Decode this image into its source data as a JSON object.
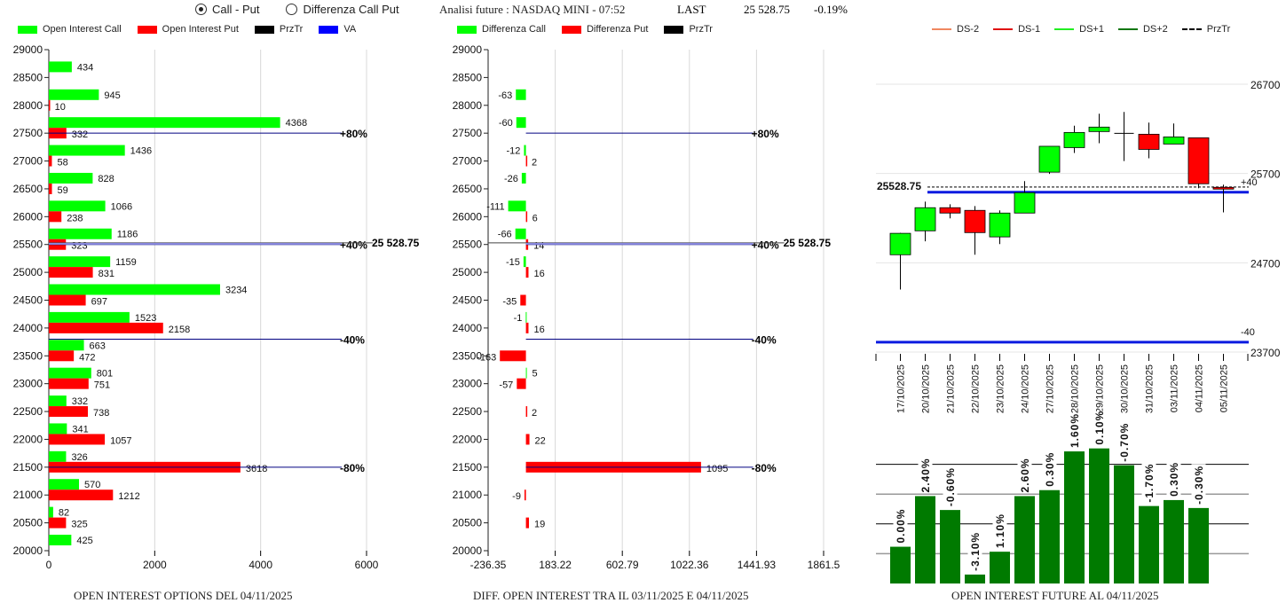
{
  "header": {
    "radio_options": [
      {
        "label": "Call - Put",
        "selected": true
      },
      {
        "label": "Differenza Call Put",
        "selected": false
      }
    ],
    "title": "Analisi future : NASDAQ MINI - 07:52",
    "last_label": "LAST",
    "last_price": "25 528.75",
    "change": "-0.19%"
  },
  "colors": {
    "call": "#00ff00",
    "put": "#ff0000",
    "przTr": "#000000",
    "va": "#0000ff",
    "ds_minus2": "#f08860",
    "ds_minus1": "#e01010",
    "ds_plus1": "#22ee22",
    "ds_plus2": "#117711",
    "oi_future": "#007a00"
  },
  "chart_data": [
    {
      "type": "bar",
      "orientation": "horizontal",
      "title": "OPEN INTEREST OPTIONS DEL 04/11/2025",
      "legend": [
        "Open Interest Call",
        "Open Interest Put",
        "PrzTr",
        "VA"
      ],
      "legend_position": "top",
      "categories": [
        28500,
        28000,
        27500,
        27000,
        26500,
        26000,
        25500,
        25000,
        24500,
        24000,
        23500,
        23000,
        22500,
        22000,
        21500,
        21000,
        20500,
        20000
      ],
      "series": [
        {
          "name": "Open Interest Call",
          "values": [
            434,
            945,
            4368,
            1436,
            828,
            1066,
            1186,
            1159,
            3234,
            1523,
            663,
            801,
            332,
            341,
            326,
            570,
            82,
            425
          ]
        },
        {
          "name": "Open Interest Put",
          "values": [
            null,
            10,
            332,
            58,
            59,
            238,
            323,
            831,
            697,
            2158,
            472,
            751,
            738,
            1057,
            3618,
            1212,
            325,
            null
          ]
        }
      ],
      "y_ticks": [
        "29000",
        "28500",
        "28000",
        "27500",
        "27000",
        "26500",
        "26000",
        "25500",
        "25000",
        "24500",
        "24000",
        "23500",
        "23000",
        "22500",
        "22000",
        "21500",
        "21000",
        "20500",
        "20000"
      ],
      "ylim": [
        20000,
        29000
      ],
      "x_ticks": [
        "0",
        "2000",
        "4000",
        "6000"
      ],
      "xlim": [
        0,
        7000
      ],
      "levels": [
        {
          "label": "+80%",
          "price": 27500
        },
        {
          "label": "+40%",
          "price": 25500
        },
        {
          "label": "-40%",
          "price": 23800
        },
        {
          "label": "-80%",
          "price": 21500
        }
      ],
      "przTr": {
        "price": 25528.75,
        "label": "25 528.75"
      },
      "grid": true
    },
    {
      "type": "bar",
      "orientation": "horizontal",
      "title": "DIFF. OPEN INTEREST TRA IL 03/11/2025 E 04/11/2025",
      "legend": [
        "Differenza Call",
        "Differenza Put",
        "PrzTr"
      ],
      "legend_position": "top",
      "categories": [
        28000,
        27500,
        27000,
        26500,
        26000,
        25500,
        25000,
        24500,
        24000,
        23500,
        23000,
        22500,
        22000,
        21500,
        21000,
        20500
      ],
      "series": [
        {
          "name": "Differenza Call",
          "values": [
            -63,
            -60,
            -12,
            -26,
            -111,
            -66,
            -15,
            null,
            -1,
            null,
            5,
            null,
            null,
            null,
            null,
            null
          ]
        },
        {
          "name": "Differenza Put",
          "values": [
            null,
            null,
            2,
            null,
            6,
            14,
            16,
            -35,
            16,
            -163,
            -57,
            2,
            22,
            1095,
            -9,
            19
          ]
        }
      ],
      "y_ticks": [
        "29000",
        "28500",
        "28000",
        "27500",
        "27000",
        "26500",
        "26000",
        "25500",
        "25000",
        "24500",
        "24000",
        "23500",
        "23000",
        "22500",
        "22000",
        "21500",
        "21000",
        "20500",
        "20000"
      ],
      "ylim": [
        20000,
        29000
      ],
      "x_ticks": [
        "-236.35",
        "183.22",
        "602.79",
        "1022.36",
        "1441.93",
        "1861.5"
      ],
      "xlim": [
        -236.35,
        1861.5
      ],
      "levels": [
        {
          "label": "+80%",
          "price": 27500
        },
        {
          "label": "+40%",
          "price": 25500
        },
        {
          "label": "-40%",
          "price": 23800
        },
        {
          "label": "-80%",
          "price": 21500
        }
      ],
      "przTr": {
        "price": 25528.75,
        "label": "25 528.75"
      },
      "grid": true
    },
    {
      "type": "candlestick",
      "legend": [
        "DS-2",
        "DS-1",
        "DS+1",
        "DS+2",
        "PrzTr"
      ],
      "legend_position": "top",
      "dates": [
        "17/10/2025",
        "20/10/2025",
        "21/10/2025",
        "22/10/2025",
        "23/10/2025",
        "24/10/2025",
        "27/10/2025",
        "28/10/2025",
        "29/10/2025",
        "30/10/2025",
        "31/10/2025",
        "03/11/2025",
        "04/11/2025",
        "05/11/2025"
      ],
      "candles": [
        {
          "open": 24790,
          "high": 25035,
          "low": 24400,
          "close": 25030
        },
        {
          "open": 25058,
          "high": 25385,
          "low": 24940,
          "close": 25317
        },
        {
          "open": 25317,
          "high": 25355,
          "low": 25197,
          "close": 25257
        },
        {
          "open": 25287,
          "high": 25335,
          "low": 24790,
          "close": 25038
        },
        {
          "open": 24990,
          "high": 25287,
          "low": 24910,
          "close": 25257
        },
        {
          "open": 25257,
          "high": 25615,
          "low": 25257,
          "close": 25485
        },
        {
          "open": 25715,
          "high": 26000,
          "low": 25695,
          "close": 26005
        },
        {
          "open": 25990,
          "high": 26235,
          "low": 25930,
          "close": 26160
        },
        {
          "open": 26170,
          "high": 26370,
          "low": 26040,
          "close": 26220
        },
        {
          "open": 26150,
          "high": 26390,
          "low": 25840,
          "close": 26150
        },
        {
          "open": 26140,
          "high": 26270,
          "low": 25870,
          "close": 25970
        },
        {
          "open": 26030,
          "high": 26260,
          "low": 26030,
          "close": 26110
        },
        {
          "open": 26100,
          "high": 26100,
          "low": 25535,
          "close": 25585
        },
        {
          "open": 25545,
          "high": 25575,
          "low": 25265,
          "close": 25525
        }
      ],
      "y_ticks": [
        "26700",
        "25700",
        "24700",
        "23700"
      ],
      "ylim": [
        23700,
        26700
      ],
      "przTr": {
        "price": 25528.75,
        "label": "25528.75"
      },
      "ds_lines": [
        {
          "label": "+40",
          "price": 25490
        },
        {
          "label": "-40",
          "price": 23810
        }
      ],
      "grid": true
    },
    {
      "type": "bar",
      "title": "OPEN INTEREST FUTURE AL 04/11/2025",
      "categories": [
        "17/10/2025",
        "20/10/2025",
        "21/10/2025",
        "22/10/2025",
        "23/10/2025",
        "24/10/2025",
        "27/10/2025",
        "28/10/2025",
        "29/10/2025",
        "30/10/2025",
        "31/10/2025",
        "03/11/2025",
        "04/11/2025"
      ],
      "values": [
        37,
        88,
        74,
        9,
        32,
        88,
        94,
        133,
        136,
        119,
        78,
        84,
        76
      ],
      "data_labels": [
        "0.00%",
        "2.40%",
        "-0.60%",
        "-3.10%",
        "1.10%",
        "2.60%",
        "0.30%",
        "1.60%",
        "0.10%",
        "-0.70%",
        "-1.70%",
        "0.30%",
        "-0.30%"
      ],
      "ylim": [
        0,
        150
      ],
      "grid": true
    }
  ]
}
